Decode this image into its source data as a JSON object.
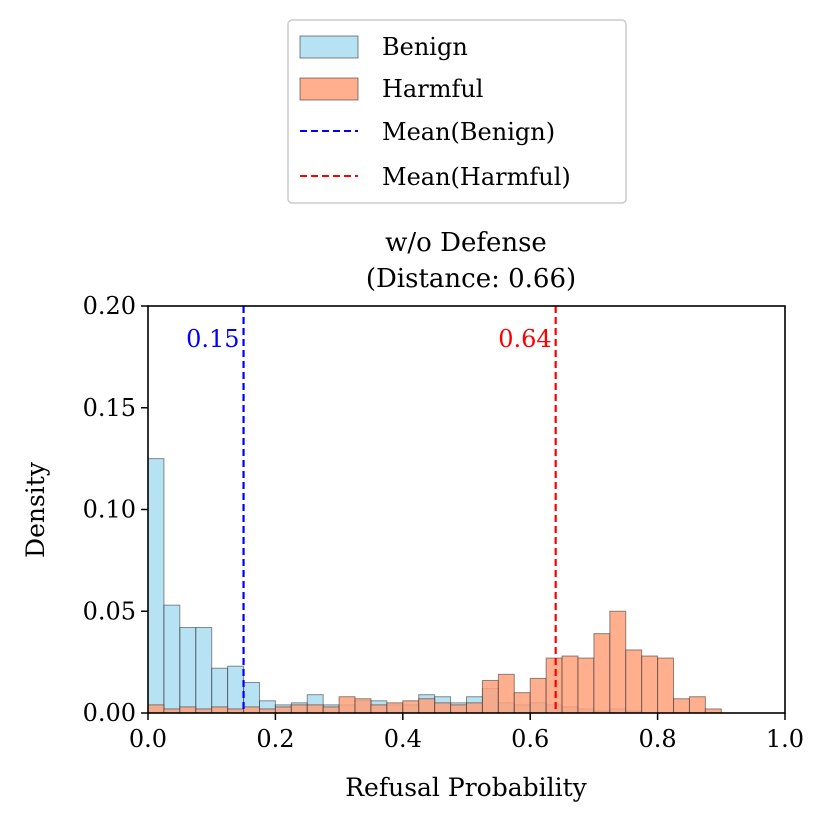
{
  "chart_data": {
    "type": "histogram",
    "title": "w/o Defense",
    "subtitle": "(Distance: 0.66)",
    "xlabel": "Refusal Probability",
    "ylabel": "Density",
    "xlim": [
      0.0,
      1.0
    ],
    "ylim": [
      0.0,
      0.2
    ],
    "x_ticks": [
      "0.0",
      "0.2",
      "0.4",
      "0.6",
      "0.8",
      "1.0"
    ],
    "y_ticks": [
      "0.00",
      "0.05",
      "0.10",
      "0.15",
      "0.20"
    ],
    "bin_width": 0.025,
    "legend_position": "top-center",
    "legend": [
      {
        "label": "Benign",
        "kind": "patch",
        "color": "#87ceeb"
      },
      {
        "label": "Harmful",
        "kind": "patch",
        "color": "#ffa07a"
      },
      {
        "label": "Mean(Benign)",
        "kind": "dashed-line",
        "color": "#0000ff"
      },
      {
        "label": "Mean(Harmful)",
        "kind": "dashed-line",
        "color": "#ff0000"
      }
    ],
    "series": [
      {
        "name": "Benign",
        "color": "#87ceeb",
        "bins": [
          {
            "x": 0.0,
            "y": 0.125
          },
          {
            "x": 0.025,
            "y": 0.053
          },
          {
            "x": 0.05,
            "y": 0.042
          },
          {
            "x": 0.075,
            "y": 0.042
          },
          {
            "x": 0.1,
            "y": 0.022
          },
          {
            "x": 0.125,
            "y": 0.023
          },
          {
            "x": 0.15,
            "y": 0.015
          },
          {
            "x": 0.175,
            "y": 0.006
          },
          {
            "x": 0.2,
            "y": 0.004
          },
          {
            "x": 0.225,
            "y": 0.005
          },
          {
            "x": 0.25,
            "y": 0.009
          },
          {
            "x": 0.275,
            "y": 0.004
          },
          {
            "x": 0.3,
            "y": 0.004
          },
          {
            "x": 0.325,
            "y": 0.006
          },
          {
            "x": 0.35,
            "y": 0.006
          },
          {
            "x": 0.375,
            "y": 0.004
          },
          {
            "x": 0.4,
            "y": 0.004
          },
          {
            "x": 0.425,
            "y": 0.009
          },
          {
            "x": 0.45,
            "y": 0.008
          },
          {
            "x": 0.475,
            "y": 0.005
          },
          {
            "x": 0.5,
            "y": 0.008
          },
          {
            "x": 0.525,
            "y": 0.012
          },
          {
            "x": 0.55,
            "y": 0.005
          },
          {
            "x": 0.575,
            "y": 0.004
          },
          {
            "x": 0.6,
            "y": 0.005
          },
          {
            "x": 0.625,
            "y": 0.004
          },
          {
            "x": 0.65,
            "y": 0.003
          },
          {
            "x": 0.675,
            "y": 0.002
          },
          {
            "x": 0.7,
            "y": 0.001
          },
          {
            "x": 0.725,
            "y": 0.002
          },
          {
            "x": 0.75,
            "y": 0.001
          }
        ]
      },
      {
        "name": "Harmful",
        "color": "#ffa07a",
        "bins": [
          {
            "x": 0.0,
            "y": 0.004
          },
          {
            "x": 0.025,
            "y": 0.002
          },
          {
            "x": 0.05,
            "y": 0.003
          },
          {
            "x": 0.075,
            "y": 0.002
          },
          {
            "x": 0.1,
            "y": 0.003
          },
          {
            "x": 0.125,
            "y": 0.002
          },
          {
            "x": 0.15,
            "y": 0.003
          },
          {
            "x": 0.175,
            "y": 0.002
          },
          {
            "x": 0.2,
            "y": 0.003
          },
          {
            "x": 0.225,
            "y": 0.004
          },
          {
            "x": 0.25,
            "y": 0.004
          },
          {
            "x": 0.275,
            "y": 0.003
          },
          {
            "x": 0.3,
            "y": 0.008
          },
          {
            "x": 0.325,
            "y": 0.007
          },
          {
            "x": 0.35,
            "y": 0.004
          },
          {
            "x": 0.375,
            "y": 0.005
          },
          {
            "x": 0.4,
            "y": 0.006
          },
          {
            "x": 0.425,
            "y": 0.007
          },
          {
            "x": 0.45,
            "y": 0.005
          },
          {
            "x": 0.475,
            "y": 0.004
          },
          {
            "x": 0.5,
            "y": 0.005
          },
          {
            "x": 0.525,
            "y": 0.016
          },
          {
            "x": 0.55,
            "y": 0.019
          },
          {
            "x": 0.575,
            "y": 0.01
          },
          {
            "x": 0.6,
            "y": 0.017
          },
          {
            "x": 0.625,
            "y": 0.027
          },
          {
            "x": 0.65,
            "y": 0.028
          },
          {
            "x": 0.675,
            "y": 0.027
          },
          {
            "x": 0.7,
            "y": 0.039
          },
          {
            "x": 0.725,
            "y": 0.05
          },
          {
            "x": 0.75,
            "y": 0.031
          },
          {
            "x": 0.775,
            "y": 0.028
          },
          {
            "x": 0.8,
            "y": 0.027
          },
          {
            "x": 0.825,
            "y": 0.007
          },
          {
            "x": 0.85,
            "y": 0.008
          },
          {
            "x": 0.875,
            "y": 0.002
          }
        ]
      }
    ],
    "mean_lines": [
      {
        "name": "Mean(Benign)",
        "x": 0.15,
        "label": "0.15",
        "color": "#0000ff"
      },
      {
        "name": "Mean(Harmful)",
        "x": 0.64,
        "label": "0.64",
        "color": "#ff0000"
      }
    ]
  }
}
